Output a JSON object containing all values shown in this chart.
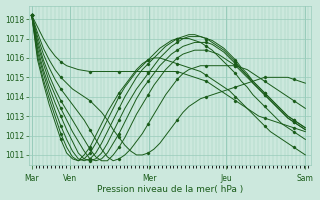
{
  "xlabel": "Pression niveau de la mer( hPa )",
  "bg_color": "#cce8dd",
  "line_color": "#1a5c1a",
  "grid_color": "#99ccbb",
  "ylim": [
    1010.5,
    1018.7
  ],
  "yticks": [
    1011,
    1012,
    1013,
    1014,
    1015,
    1016,
    1017,
    1018
  ],
  "xtick_labels": [
    "Mar",
    "Ven",
    "Mer",
    "Jeu",
    "Sam"
  ],
  "xtick_positions": [
    0,
    0.14,
    0.43,
    0.71,
    1.0
  ],
  "lines": [
    [
      1018.2,
      1017.6,
      1017.0,
      1016.5,
      1016.1,
      1015.8,
      1015.6,
      1015.5,
      1015.4,
      1015.35,
      1015.3,
      1015.3,
      1015.3,
      1015.3,
      1015.3,
      1015.3,
      1015.3,
      1015.3,
      1015.3,
      1015.3,
      1015.3,
      1015.3,
      1015.3,
      1015.3,
      1015.3,
      1015.3,
      1015.2,
      1015.1,
      1015.0,
      1014.9,
      1014.8,
      1014.6,
      1014.4,
      1014.2,
      1014.0,
      1013.8,
      1013.6,
      1013.4,
      1013.2,
      1013.0,
      1012.9,
      1012.8,
      1012.7,
      1012.6,
      1012.5,
      1012.4,
      1012.3,
      1012.2
    ],
    [
      1018.2,
      1017.3,
      1016.5,
      1015.9,
      1015.4,
      1015.0,
      1014.7,
      1014.4,
      1014.2,
      1014.0,
      1013.8,
      1013.5,
      1013.2,
      1012.8,
      1012.3,
      1011.9,
      1011.5,
      1011.2,
      1011.0,
      1011.0,
      1011.1,
      1011.3,
      1011.6,
      1012.0,
      1012.4,
      1012.8,
      1013.2,
      1013.5,
      1013.7,
      1013.9,
      1014.0,
      1014.1,
      1014.2,
      1014.3,
      1014.4,
      1014.5,
      1014.6,
      1014.7,
      1014.8,
      1014.9,
      1015.0,
      1015.0,
      1015.0,
      1015.0,
      1015.0,
      1014.9,
      1014.8,
      1014.7
    ],
    [
      1018.2,
      1017.1,
      1016.2,
      1015.5,
      1014.9,
      1014.4,
      1014.0,
      1013.6,
      1013.2,
      1012.8,
      1012.3,
      1011.8,
      1011.3,
      1010.9,
      1010.7,
      1010.8,
      1011.0,
      1011.3,
      1011.7,
      1012.1,
      1012.6,
      1013.1,
      1013.6,
      1014.1,
      1014.5,
      1014.9,
      1015.2,
      1015.4,
      1015.5,
      1015.6,
      1015.6,
      1015.6,
      1015.6,
      1015.6,
      1015.6,
      1015.6,
      1015.5,
      1015.4,
      1015.2,
      1015.0,
      1014.8,
      1014.6,
      1014.4,
      1014.2,
      1014.0,
      1013.8,
      1013.6,
      1013.4
    ],
    [
      1018.2,
      1016.9,
      1015.9,
      1015.1,
      1014.4,
      1013.8,
      1013.3,
      1012.8,
      1012.3,
      1011.8,
      1011.3,
      1010.9,
      1010.7,
      1010.7,
      1011.0,
      1011.4,
      1011.9,
      1012.5,
      1013.1,
      1013.6,
      1014.1,
      1014.6,
      1015.0,
      1015.4,
      1015.7,
      1016.0,
      1016.2,
      1016.3,
      1016.4,
      1016.4,
      1016.4,
      1016.3,
      1016.2,
      1016.0,
      1015.8,
      1015.6,
      1015.3,
      1015.0,
      1014.7,
      1014.4,
      1014.1,
      1013.8,
      1013.5,
      1013.2,
      1012.9,
      1012.7,
      1012.5,
      1012.3
    ],
    [
      1018.2,
      1016.7,
      1015.7,
      1014.8,
      1014.1,
      1013.4,
      1012.8,
      1012.2,
      1011.7,
      1011.2,
      1010.8,
      1010.7,
      1010.8,
      1011.1,
      1011.6,
      1012.1,
      1012.7,
      1013.3,
      1013.9,
      1014.4,
      1014.8,
      1015.2,
      1015.6,
      1015.9,
      1016.2,
      1016.4,
      1016.6,
      1016.7,
      1016.8,
      1016.8,
      1016.8,
      1016.7,
      1016.5,
      1016.3,
      1016.0,
      1015.7,
      1015.4,
      1015.1,
      1014.8,
      1014.5,
      1014.2,
      1013.9,
      1013.6,
      1013.3,
      1013.0,
      1012.8,
      1012.6,
      1012.4
    ],
    [
      1018.2,
      1016.5,
      1015.4,
      1014.5,
      1013.7,
      1013.0,
      1012.3,
      1011.7,
      1011.1,
      1010.8,
      1010.7,
      1010.8,
      1011.1,
      1011.6,
      1012.2,
      1012.8,
      1013.4,
      1013.9,
      1014.4,
      1014.8,
      1015.2,
      1015.6,
      1016.0,
      1016.3,
      1016.6,
      1016.8,
      1017.0,
      1017.1,
      1017.1,
      1017.1,
      1017.0,
      1016.9,
      1016.7,
      1016.5,
      1016.2,
      1015.9,
      1015.5,
      1015.2,
      1014.8,
      1014.5,
      1014.2,
      1013.9,
      1013.6,
      1013.3,
      1013.0,
      1012.8,
      1012.6,
      1012.4
    ],
    [
      1018.2,
      1016.3,
      1015.2,
      1014.2,
      1013.3,
      1012.5,
      1011.8,
      1011.2,
      1010.8,
      1010.7,
      1010.8,
      1011.1,
      1011.6,
      1012.2,
      1012.8,
      1013.4,
      1014.0,
      1014.5,
      1015.0,
      1015.4,
      1015.7,
      1016.0,
      1016.3,
      1016.6,
      1016.8,
      1017.0,
      1017.1,
      1017.2,
      1017.2,
      1017.1,
      1017.0,
      1016.8,
      1016.6,
      1016.4,
      1016.1,
      1015.8,
      1015.4,
      1015.1,
      1014.7,
      1014.4,
      1014.1,
      1013.8,
      1013.5,
      1013.2,
      1012.9,
      1012.7,
      1012.5,
      1012.3
    ],
    [
      1018.2,
      1016.1,
      1014.9,
      1013.9,
      1013.0,
      1012.1,
      1011.4,
      1010.9,
      1010.7,
      1010.8,
      1011.1,
      1011.6,
      1012.2,
      1012.8,
      1013.4,
      1014.0,
      1014.5,
      1014.9,
      1015.3,
      1015.6,
      1015.9,
      1016.2,
      1016.5,
      1016.7,
      1016.9,
      1017.0,
      1017.0,
      1017.0,
      1016.9,
      1016.8,
      1016.6,
      1016.4,
      1016.1,
      1015.8,
      1015.5,
      1015.2,
      1014.8,
      1014.5,
      1014.1,
      1013.8,
      1013.5,
      1013.2,
      1012.9,
      1012.6,
      1012.4,
      1012.2,
      1012.0,
      1011.8
    ],
    [
      1018.2,
      1015.9,
      1014.7,
      1013.6,
      1012.7,
      1011.8,
      1011.1,
      1010.8,
      1010.7,
      1011.0,
      1011.4,
      1012.0,
      1012.6,
      1013.2,
      1013.7,
      1014.2,
      1014.6,
      1015.0,
      1015.4,
      1015.7,
      1015.9,
      1016.0,
      1016.0,
      1015.9,
      1015.8,
      1015.7,
      1015.6,
      1015.5,
      1015.4,
      1015.3,
      1015.1,
      1014.9,
      1014.7,
      1014.5,
      1014.3,
      1014.0,
      1013.7,
      1013.4,
      1013.1,
      1012.8,
      1012.5,
      1012.2,
      1012.0,
      1011.8,
      1011.6,
      1011.4,
      1011.2,
      1011.0
    ]
  ]
}
